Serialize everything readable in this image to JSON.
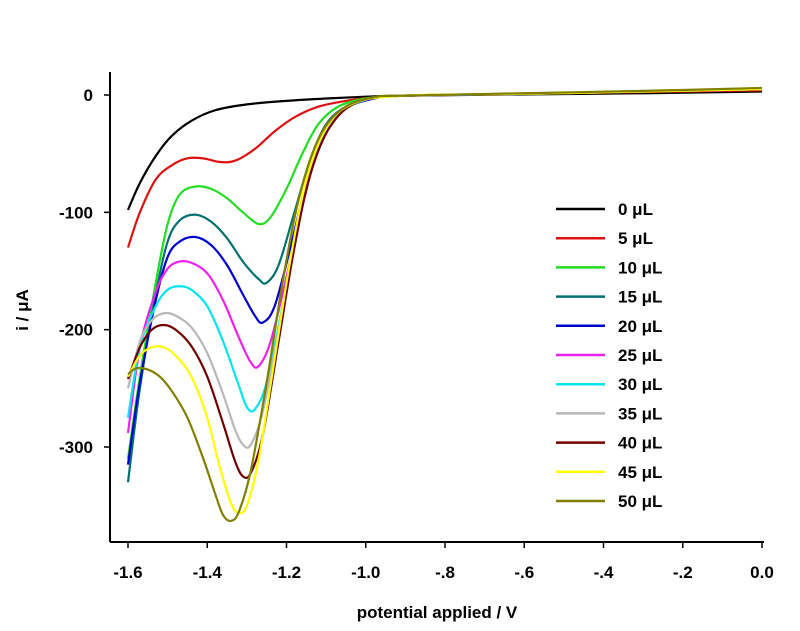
{
  "chart_data": {
    "type": "line",
    "title": "",
    "xlabel": "potential applied / V",
    "ylabel": "i / μA",
    "xlim": [
      -1.65,
      0.0
    ],
    "ylim": [
      -380,
      15
    ],
    "x_ticks": [
      -1.6,
      -1.4,
      -1.2,
      -1.0,
      -0.8,
      -0.6,
      -0.4,
      -0.2,
      0.0
    ],
    "x_tick_labels": [
      "-1.6",
      "-1.4",
      "-1.2",
      "-1.0",
      "-.8",
      "-.6",
      "-.4",
      "-.2",
      "0.0"
    ],
    "y_ticks": [
      0,
      -100,
      -200,
      -300
    ],
    "y_tick_labels": [
      "0",
      "-100",
      "-200",
      "-300"
    ],
    "grid": false,
    "legend_position": "right",
    "series": [
      {
        "name": "0 μL",
        "color": "#000000",
        "points": [
          [
            -1.6,
            -98
          ],
          [
            -1.57,
            -75
          ],
          [
            -1.53,
            -52
          ],
          [
            -1.49,
            -35
          ],
          [
            -1.44,
            -22
          ],
          [
            -1.38,
            -13
          ],
          [
            -1.3,
            -8
          ],
          [
            -1.2,
            -5
          ],
          [
            -1.1,
            -3
          ],
          [
            -1.0,
            -1.5
          ],
          [
            -0.9,
            -0.5
          ],
          [
            -0.6,
            0.5
          ],
          [
            -0.3,
            1.5
          ],
          [
            0.0,
            3
          ]
        ]
      },
      {
        "name": "5 μL",
        "color": "#dd1111",
        "points": [
          [
            -1.6,
            -130
          ],
          [
            -1.57,
            -100
          ],
          [
            -1.53,
            -72
          ],
          [
            -1.49,
            -60
          ],
          [
            -1.45,
            -54
          ],
          [
            -1.41,
            -54
          ],
          [
            -1.37,
            -57
          ],
          [
            -1.33,
            -56
          ],
          [
            -1.28,
            -46
          ],
          [
            -1.23,
            -31
          ],
          [
            -1.18,
            -19
          ],
          [
            -1.12,
            -10
          ],
          [
            -1.05,
            -5
          ],
          [
            -0.98,
            -2
          ],
          [
            -0.9,
            -0.5
          ],
          [
            -0.6,
            1
          ],
          [
            -0.3,
            2.5
          ],
          [
            0.0,
            4
          ]
        ]
      },
      {
        "name": "10 μL",
        "color": "#22dd22",
        "points": [
          [
            -1.6,
            -310
          ],
          [
            -1.57,
            -240
          ],
          [
            -1.53,
            -160
          ],
          [
            -1.5,
            -110
          ],
          [
            -1.47,
            -85
          ],
          [
            -1.43,
            -78
          ],
          [
            -1.39,
            -80
          ],
          [
            -1.35,
            -88
          ],
          [
            -1.31,
            -100
          ],
          [
            -1.27,
            -110
          ],
          [
            -1.24,
            -104
          ],
          [
            -1.2,
            -80
          ],
          [
            -1.16,
            -50
          ],
          [
            -1.12,
            -25
          ],
          [
            -1.07,
            -10
          ],
          [
            -1.0,
            -3
          ],
          [
            -0.9,
            -0.5
          ],
          [
            -0.6,
            1
          ],
          [
            -0.3,
            3
          ],
          [
            0.0,
            5
          ]
        ]
      },
      {
        "name": "15 μL",
        "color": "#007070",
        "points": [
          [
            -1.6,
            -330
          ],
          [
            -1.57,
            -250
          ],
          [
            -1.53,
            -170
          ],
          [
            -1.5,
            -125
          ],
          [
            -1.47,
            -107
          ],
          [
            -1.43,
            -102
          ],
          [
            -1.39,
            -108
          ],
          [
            -1.35,
            -122
          ],
          [
            -1.31,
            -142
          ],
          [
            -1.27,
            -157
          ],
          [
            -1.25,
            -160
          ],
          [
            -1.22,
            -145
          ],
          [
            -1.18,
            -100
          ],
          [
            -1.14,
            -55
          ],
          [
            -1.1,
            -25
          ],
          [
            -1.05,
            -10
          ],
          [
            -0.98,
            -3
          ],
          [
            -0.9,
            -0.5
          ],
          [
            -0.6,
            1
          ],
          [
            -0.3,
            3
          ],
          [
            0.0,
            5
          ]
        ]
      },
      {
        "name": "20 μL",
        "color": "#0000cc",
        "points": [
          [
            -1.6,
            -315
          ],
          [
            -1.57,
            -245
          ],
          [
            -1.53,
            -175
          ],
          [
            -1.5,
            -138
          ],
          [
            -1.47,
            -125
          ],
          [
            -1.43,
            -121
          ],
          [
            -1.39,
            -128
          ],
          [
            -1.35,
            -145
          ],
          [
            -1.31,
            -170
          ],
          [
            -1.28,
            -188
          ],
          [
            -1.26,
            -194
          ],
          [
            -1.23,
            -180
          ],
          [
            -1.19,
            -130
          ],
          [
            -1.15,
            -75
          ],
          [
            -1.11,
            -35
          ],
          [
            -1.06,
            -13
          ],
          [
            -0.98,
            -3
          ],
          [
            -0.9,
            -0.5
          ],
          [
            -0.6,
            1
          ],
          [
            -0.3,
            3
          ],
          [
            0.0,
            5
          ]
        ]
      },
      {
        "name": "25 μL",
        "color": "#ee22ee",
        "points": [
          [
            -1.6,
            -288
          ],
          [
            -1.57,
            -215
          ],
          [
            -1.53,
            -168
          ],
          [
            -1.5,
            -148
          ],
          [
            -1.47,
            -142
          ],
          [
            -1.44,
            -143
          ],
          [
            -1.4,
            -152
          ],
          [
            -1.36,
            -175
          ],
          [
            -1.32,
            -207
          ],
          [
            -1.29,
            -228
          ],
          [
            -1.27,
            -231
          ],
          [
            -1.24,
            -210
          ],
          [
            -1.2,
            -155
          ],
          [
            -1.16,
            -95
          ],
          [
            -1.12,
            -45
          ],
          [
            -1.07,
            -16
          ],
          [
            -1.0,
            -4
          ],
          [
            -0.9,
            -0.5
          ],
          [
            -0.6,
            1
          ],
          [
            -0.3,
            3
          ],
          [
            0.0,
            5
          ]
        ]
      },
      {
        "name": "30 μL",
        "color": "#00e5ee",
        "points": [
          [
            -1.6,
            -275
          ],
          [
            -1.57,
            -215
          ],
          [
            -1.53,
            -180
          ],
          [
            -1.5,
            -166
          ],
          [
            -1.47,
            -163
          ],
          [
            -1.44,
            -166
          ],
          [
            -1.4,
            -180
          ],
          [
            -1.36,
            -210
          ],
          [
            -1.32,
            -248
          ],
          [
            -1.3,
            -266
          ],
          [
            -1.28,
            -268
          ],
          [
            -1.25,
            -245
          ],
          [
            -1.21,
            -180
          ],
          [
            -1.17,
            -110
          ],
          [
            -1.13,
            -55
          ],
          [
            -1.08,
            -20
          ],
          [
            -1.0,
            -4
          ],
          [
            -0.9,
            -0.5
          ],
          [
            -0.6,
            1
          ],
          [
            -0.3,
            3
          ],
          [
            0.0,
            5
          ]
        ]
      },
      {
        "name": "35 μL",
        "color": "#b8b8b8",
        "points": [
          [
            -1.6,
            -250
          ],
          [
            -1.57,
            -210
          ],
          [
            -1.54,
            -192
          ],
          [
            -1.51,
            -186
          ],
          [
            -1.48,
            -188
          ],
          [
            -1.44,
            -198
          ],
          [
            -1.4,
            -220
          ],
          [
            -1.36,
            -255
          ],
          [
            -1.33,
            -285
          ],
          [
            -1.31,
            -298
          ],
          [
            -1.29,
            -298
          ],
          [
            -1.26,
            -270
          ],
          [
            -1.22,
            -200
          ],
          [
            -1.18,
            -125
          ],
          [
            -1.14,
            -65
          ],
          [
            -1.09,
            -25
          ],
          [
            -1.02,
            -6
          ],
          [
            -0.9,
            -0.5
          ],
          [
            -0.6,
            1
          ],
          [
            -0.3,
            3
          ],
          [
            0.0,
            5
          ]
        ]
      },
      {
        "name": "40 μL",
        "color": "#700000",
        "points": [
          [
            -1.6,
            -242
          ],
          [
            -1.57,
            -215
          ],
          [
            -1.54,
            -200
          ],
          [
            -1.51,
            -196
          ],
          [
            -1.48,
            -200
          ],
          [
            -1.44,
            -214
          ],
          [
            -1.4,
            -240
          ],
          [
            -1.36,
            -280
          ],
          [
            -1.33,
            -312
          ],
          [
            -1.31,
            -325
          ],
          [
            -1.29,
            -322
          ],
          [
            -1.26,
            -290
          ],
          [
            -1.22,
            -210
          ],
          [
            -1.18,
            -130
          ],
          [
            -1.14,
            -68
          ],
          [
            -1.09,
            -27
          ],
          [
            -1.02,
            -6
          ],
          [
            -0.9,
            -0.5
          ],
          [
            -0.6,
            1
          ],
          [
            -0.3,
            3
          ],
          [
            0.0,
            5
          ]
        ]
      },
      {
        "name": "45 μL",
        "color": "#ffff00",
        "points": [
          [
            -1.6,
            -240
          ],
          [
            -1.57,
            -222
          ],
          [
            -1.54,
            -215
          ],
          [
            -1.51,
            -215
          ],
          [
            -1.48,
            -222
          ],
          [
            -1.44,
            -240
          ],
          [
            -1.4,
            -275
          ],
          [
            -1.37,
            -315
          ],
          [
            -1.34,
            -348
          ],
          [
            -1.32,
            -356
          ],
          [
            -1.3,
            -350
          ],
          [
            -1.27,
            -310
          ],
          [
            -1.23,
            -225
          ],
          [
            -1.19,
            -140
          ],
          [
            -1.15,
            -72
          ],
          [
            -1.1,
            -28
          ],
          [
            -1.03,
            -7
          ],
          [
            -0.9,
            -0.5
          ],
          [
            -0.6,
            1
          ],
          [
            -0.3,
            3
          ],
          [
            0.0,
            5
          ]
        ]
      },
      {
        "name": "50 μL",
        "color": "#808000",
        "points": [
          [
            -1.6,
            -238
          ],
          [
            -1.58,
            -233
          ],
          [
            -1.55,
            -234
          ],
          [
            -1.52,
            -240
          ],
          [
            -1.49,
            -252
          ],
          [
            -1.45,
            -275
          ],
          [
            -1.41,
            -310
          ],
          [
            -1.38,
            -340
          ],
          [
            -1.36,
            -358
          ],
          [
            -1.34,
            -363
          ],
          [
            -1.32,
            -355
          ],
          [
            -1.29,
            -320
          ],
          [
            -1.25,
            -245
          ],
          [
            -1.21,
            -160
          ],
          [
            -1.17,
            -90
          ],
          [
            -1.12,
            -38
          ],
          [
            -1.06,
            -12
          ],
          [
            -0.98,
            -2
          ],
          [
            -0.9,
            -0.5
          ],
          [
            -0.6,
            1.5
          ],
          [
            -0.3,
            3.5
          ],
          [
            0.0,
            6
          ]
        ]
      }
    ]
  }
}
